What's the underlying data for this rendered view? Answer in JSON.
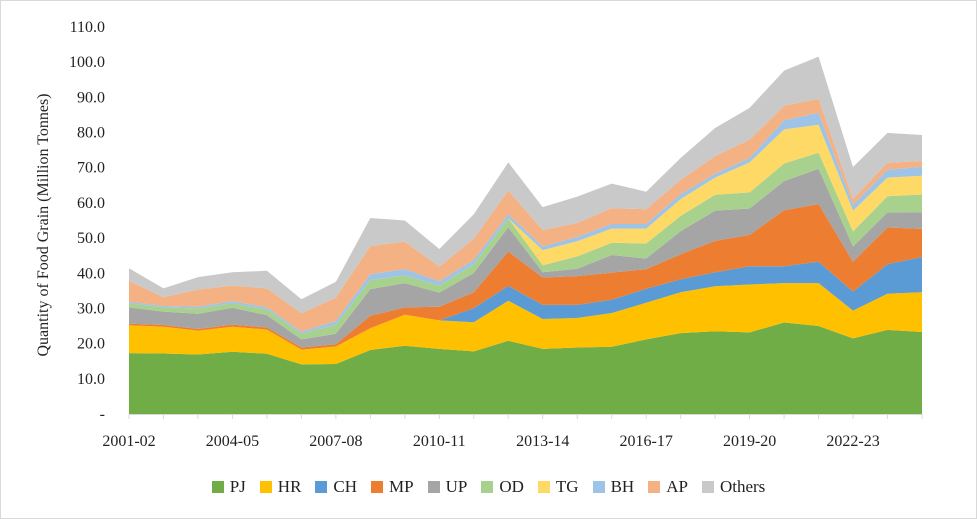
{
  "chart_data": {
    "type": "area",
    "stacked": true,
    "ylabel": "Quantity of Food Grain (Million Tonnes)",
    "xlabel": "",
    "ylim": [
      0,
      110
    ],
    "yticks": [
      "-",
      "10.0",
      "20.0",
      "30.0",
      "40.0",
      "50.0",
      "60.0",
      "70.0",
      "80.0",
      "90.0",
      "100.0",
      "110.0"
    ],
    "x_labels_shown": [
      "2001-02",
      "2004-05",
      "2007-08",
      "2010-11",
      "2013-14",
      "2016-17",
      "2019-20",
      "2022-23"
    ],
    "x": [
      "2001-02",
      "2002-03",
      "2003-04",
      "2004-05",
      "2005-06",
      "2006-07",
      "2007-08",
      "2008-09",
      "2009-10",
      "2010-11",
      "2011-12",
      "2012-13",
      "2013-14",
      "2014-15",
      "2015-16",
      "2016-17",
      "2017-18",
      "2018-19",
      "2019-20",
      "2020-21",
      "2021-22",
      "2022-23",
      "2023-24",
      "2024-25"
    ],
    "gridlines": false,
    "legend_position": "bottom",
    "series": [
      {
        "name": "PJ",
        "color": "#70ad47",
        "values": [
          17.3,
          17.2,
          16.9,
          17.7,
          17.1,
          14.1,
          14.2,
          18.2,
          19.4,
          18.5,
          17.8,
          20.8,
          18.5,
          18.9,
          19.1,
          21.2,
          23.0,
          23.5,
          23.2,
          26.0,
          25.0,
          21.5,
          23.9,
          23.3
        ]
      },
      {
        "name": "HR",
        "color": "#ffc000",
        "values": [
          7.9,
          7.6,
          6.8,
          7.1,
          6.9,
          4.2,
          5.0,
          6.2,
          8.8,
          8.1,
          8.3,
          11.4,
          8.5,
          8.4,
          9.6,
          10.4,
          11.6,
          12.8,
          13.6,
          11.2,
          12.2,
          7.9,
          10.3,
          11.3
        ]
      },
      {
        "name": "CH",
        "color": "#5b9bd5",
        "values": [
          0,
          0,
          0,
          0,
          0,
          0,
          0,
          0,
          0,
          0,
          4.0,
          4.2,
          4.0,
          3.7,
          3.8,
          4.0,
          3.7,
          4.0,
          5.2,
          4.8,
          6.1,
          5.4,
          8.4,
          10.0
        ]
      },
      {
        "name": "MP",
        "color": "#ed7d31",
        "values": [
          0.5,
          0.5,
          0.5,
          0.6,
          0.6,
          0.6,
          0.6,
          3.5,
          2.1,
          3.9,
          4.5,
          9.8,
          7.8,
          8.2,
          7.7,
          5.6,
          7.1,
          8.9,
          8.9,
          15.9,
          16.4,
          8.5,
          10.4,
          8.0
        ]
      },
      {
        "name": "UP",
        "color": "#a5a5a5",
        "values": [
          4.6,
          3.8,
          4.3,
          4.8,
          3.5,
          2.3,
          3.0,
          7.6,
          6.9,
          4.0,
          5.5,
          6.9,
          1.5,
          2.1,
          5.0,
          3.0,
          6.6,
          8.6,
          7.5,
          8.3,
          10.0,
          4.3,
          4.3,
          4.8
        ]
      },
      {
        "name": "OD",
        "color": "#a9d18e",
        "values": [
          1.2,
          1.2,
          1.5,
          1.3,
          1.6,
          1.6,
          2.6,
          2.6,
          2.2,
          2.0,
          2.5,
          2.5,
          2.0,
          3.5,
          3.5,
          4.3,
          4.3,
          4.5,
          4.6,
          5.0,
          4.6,
          4.3,
          4.6,
          5.0
        ]
      },
      {
        "name": "TG",
        "color": "#ffd966",
        "values": [
          0,
          0,
          0,
          0,
          0,
          0,
          0,
          0,
          0,
          0,
          0,
          0,
          4.3,
          4.3,
          4.0,
          4.2,
          4.8,
          4.9,
          8.5,
          9.7,
          7.9,
          5.9,
          5.3,
          5.3
        ]
      },
      {
        "name": "BH",
        "color": "#9dc3e6",
        "values": [
          0.4,
          0.4,
          0.5,
          0.6,
          0.6,
          0.6,
          1.0,
          1.6,
          1.8,
          1.2,
          1.2,
          1.2,
          1.0,
          1.2,
          1.3,
          1.3,
          1.4,
          1.1,
          1.3,
          2.6,
          3.4,
          1.7,
          2.2,
          2.6
        ]
      },
      {
        "name": "AP",
        "color": "#f4b183",
        "values": [
          6.0,
          2.5,
          4.9,
          4.4,
          5.4,
          5.2,
          6.7,
          8.0,
          7.8,
          4.2,
          6.0,
          6.7,
          4.7,
          4.0,
          4.5,
          4.2,
          4.1,
          5.0,
          5.2,
          4.1,
          4.0,
          1.7,
          2.0,
          1.6
        ]
      },
      {
        "name": "Others",
        "color": "#c9c9c9",
        "values": [
          3.5,
          2.5,
          3.5,
          3.8,
          5.0,
          4.0,
          4.5,
          8.0,
          6.0,
          5.0,
          7.0,
          8.0,
          6.5,
          7.5,
          7.0,
          5.0,
          6.2,
          8.0,
          9.0,
          10.0,
          12.0,
          9.0,
          8.5,
          7.4
        ]
      }
    ]
  }
}
